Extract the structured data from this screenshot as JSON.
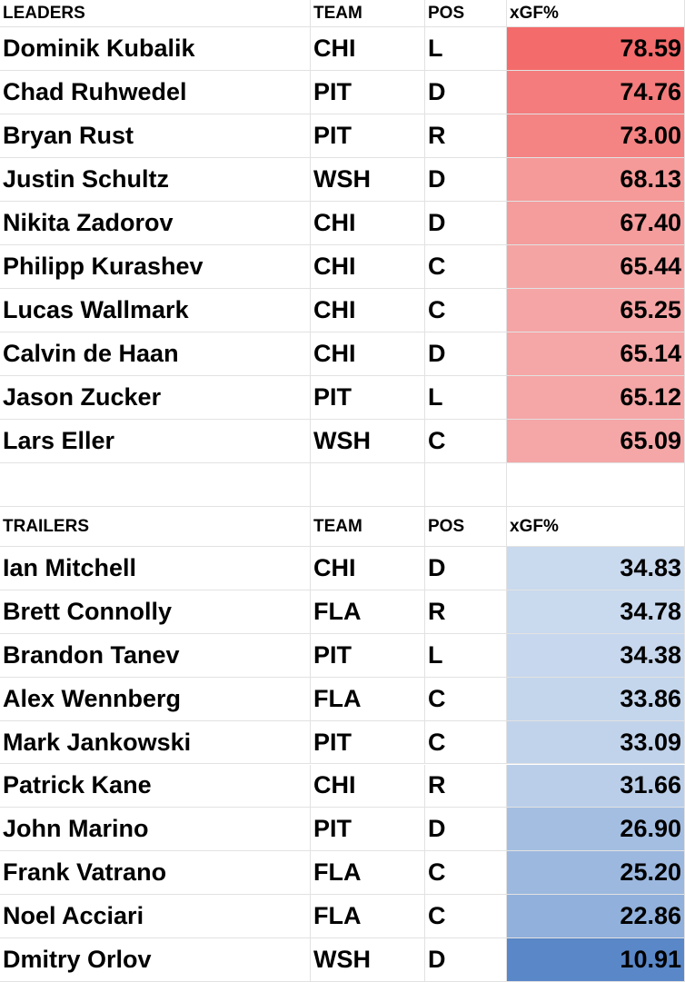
{
  "leaders": {
    "header": [
      "LEADERS",
      "TEAM",
      "POS",
      "xGF%"
    ],
    "rows": [
      [
        "Dominik Kubalik",
        "CHI",
        "L",
        "78.59"
      ],
      [
        "Chad Ruhwedel",
        "PIT",
        "D",
        "74.76"
      ],
      [
        "Bryan Rust",
        "PIT",
        "R",
        "73.00"
      ],
      [
        "Justin Schultz",
        "WSH",
        "D",
        "68.13"
      ],
      [
        "Nikita Zadorov",
        "CHI",
        "D",
        "67.40"
      ],
      [
        "Philipp Kurashev",
        "CHI",
        "C",
        "65.44"
      ],
      [
        "Lucas Wallmark",
        "CHI",
        "C",
        "65.25"
      ],
      [
        "Calvin de Haan",
        "CHI",
        "D",
        "65.14"
      ],
      [
        "Jason Zucker",
        "PIT",
        "L",
        "65.12"
      ],
      [
        "Lars Eller",
        "WSH",
        "C",
        "65.09"
      ]
    ]
  },
  "trailers": {
    "header": [
      "TRAILERS",
      "TEAM",
      "POS",
      "xGF%"
    ],
    "rows": [
      [
        "Ian Mitchell",
        "CHI",
        "D",
        "34.83"
      ],
      [
        "Brett Connolly",
        "FLA",
        "R",
        "34.78"
      ],
      [
        "Brandon Tanev",
        "PIT",
        "L",
        "34.38"
      ],
      [
        "Alex Wennberg",
        "FLA",
        "C",
        "33.86"
      ],
      [
        "Mark Jankowski",
        "PIT",
        "C",
        "33.09"
      ],
      [
        "Patrick Kane",
        "CHI",
        "R",
        "31.66"
      ],
      [
        "John Marino",
        "PIT",
        "D",
        "26.90"
      ],
      [
        "Frank Vatrano",
        "FLA",
        "C",
        "25.20"
      ],
      [
        "Noel Acciari",
        "FLA",
        "C",
        "22.86"
      ],
      [
        "Dmitry Orlov",
        "WSH",
        "D",
        "10.91"
      ]
    ]
  }
}
